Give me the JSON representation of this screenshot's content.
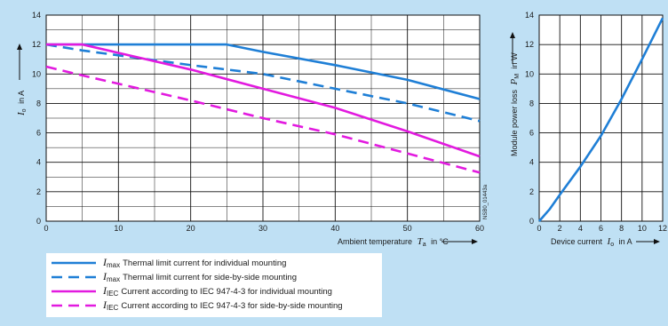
{
  "colors": {
    "background": "#bfe0f4",
    "plot_background": "#ffffff",
    "grid": "#111111",
    "blue": "#1f7fd6",
    "magenta": "#e21adf"
  },
  "figure_code": "NSB0_01443a",
  "chart_data": [
    {
      "type": "line",
      "xlabel": "Ambient temperature",
      "xlabel_var": "T",
      "xlabel_sub": "a",
      "xlabel_unit": "in °C",
      "ylabel_var": "I",
      "ylabel_sub": "o",
      "ylabel_unit": "in A",
      "xlim": [
        0,
        60
      ],
      "ylim": [
        0,
        14
      ],
      "xticks": [
        "0",
        "10",
        "20",
        "30",
        "40",
        "50",
        "60"
      ],
      "yticks": [
        "0",
        "2",
        "4",
        "6",
        "8",
        "10",
        "12",
        "14"
      ],
      "grid": true,
      "series": [
        {
          "color": "#1f7fd6",
          "dash": false,
          "x": [
            0,
            5,
            20,
            25,
            30,
            40,
            50,
            60
          ],
          "y": [
            12,
            12,
            12,
            12,
            11.5,
            10.6,
            9.6,
            8.3
          ]
        },
        {
          "color": "#1f7fd6",
          "dash": true,
          "x": [
            0,
            5,
            20,
            30,
            40,
            50,
            60
          ],
          "y": [
            12,
            11.6,
            10.6,
            10,
            9,
            8,
            6.8
          ]
        },
        {
          "color": "#e21adf",
          "dash": false,
          "x": [
            0,
            5,
            20,
            30,
            40,
            50,
            60
          ],
          "y": [
            12,
            12,
            10.3,
            9,
            7.7,
            6.1,
            4.4
          ]
        },
        {
          "color": "#e21adf",
          "dash": true,
          "x": [
            0,
            5,
            20,
            30,
            40,
            50,
            60
          ],
          "y": [
            10.5,
            9.9,
            8.2,
            7,
            5.9,
            4.6,
            3.3
          ]
        }
      ],
      "legend": [
        {
          "symbol": "I",
          "sub": "max",
          "text": "Thermal limit current for individual mounting"
        },
        {
          "symbol": "I",
          "sub": "max",
          "text": "Thermal limit current for side-by-side mounting"
        },
        {
          "symbol": "I",
          "sub": "IEC",
          "text": "Current according to IEC 947-4-3 for individual mounting"
        },
        {
          "symbol": "I",
          "sub": "IEC",
          "text": "Current according to IEC 947-4-3 for side-by-side mounting"
        }
      ]
    },
    {
      "type": "line",
      "xlabel": "Device current",
      "xlabel_var": "I",
      "xlabel_sub": "o",
      "xlabel_unit": "in A",
      "ylabel": "Module power loss",
      "ylabel_var": "P",
      "ylabel_sub": "M",
      "ylabel_unit": "in W",
      "xlim": [
        0,
        12
      ],
      "ylim": [
        0,
        14
      ],
      "xticks": [
        "0",
        "2",
        "4",
        "6",
        "8",
        "10",
        "12"
      ],
      "yticks": [
        "0",
        "2",
        "4",
        "6",
        "8",
        "10",
        "12",
        "14"
      ],
      "grid": true,
      "series": [
        {
          "color": "#1f7fd6",
          "dash": false,
          "x": [
            0,
            1,
            2,
            4,
            6,
            8,
            10,
            12
          ],
          "y": [
            0,
            0.8,
            1.8,
            3.7,
            5.8,
            8.3,
            11,
            13.8
          ]
        }
      ]
    }
  ]
}
